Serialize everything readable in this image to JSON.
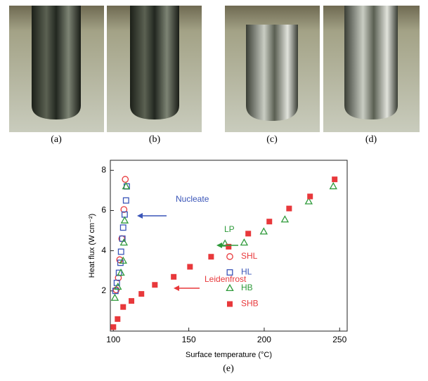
{
  "figure": {
    "panel_labels": [
      "(a)",
      "(b)",
      "(c)",
      "(d)",
      "(e)"
    ]
  },
  "chart_data": {
    "type": "scatter",
    "x_label": "Surface temperature (°C)",
    "y_label": "Heat flux (W cm⁻²)",
    "xlim": [
      98,
      255
    ],
    "ylim": [
      0,
      8.5
    ],
    "xticks": [
      100,
      150,
      200,
      250
    ],
    "yticks": [
      2,
      4,
      6,
      8
    ],
    "series": [
      {
        "name": "SHL",
        "color": "#e8383b",
        "marker": "circle-open",
        "x": [
          101.9,
          103.3,
          104.2,
          105.6,
          107,
          107.9
        ],
        "values": [
          2.05,
          2.65,
          3.55,
          4.6,
          6.05,
          7.55
        ]
      },
      {
        "name": "HL",
        "color": "#3a55b8",
        "marker": "square-open",
        "x": [
          101.4,
          102.3,
          103.7,
          104.7,
          105.1,
          106,
          106.5,
          107.5,
          108.4,
          108.9
        ],
        "values": [
          2.0,
          2.4,
          2.9,
          3.4,
          3.95,
          4.6,
          5.15,
          5.8,
          6.5,
          7.2
        ]
      },
      {
        "name": "HB",
        "color": "#2e9a3a",
        "marker": "triangle-open",
        "x": [
          101,
          103,
          105,
          106.5,
          107,
          107.5,
          108.4,
          174,
          186.7,
          199.7,
          213.7,
          229.5,
          245.8
        ],
        "values": [
          1.65,
          2.2,
          2.9,
          3.5,
          4.4,
          5.5,
          7.2,
          4.35,
          4.4,
          4.95,
          5.55,
          6.45,
          7.2
        ]
      },
      {
        "name": "SHB",
        "color": "#e8383b",
        "marker": "square-filled",
        "x": [
          100,
          102.8,
          106.5,
          112,
          118.6,
          127.5,
          140,
          150.8,
          164.8,
          176.4,
          189.4,
          203.4,
          216.5,
          230.4,
          246.7
        ],
        "values": [
          0.2,
          0.6,
          1.2,
          1.5,
          1.85,
          2.3,
          2.7,
          3.2,
          3.7,
          4.2,
          4.85,
          5.45,
          6.1,
          6.7,
          7.55
        ]
      }
    ],
    "annotations": [
      {
        "text": "Nucleate",
        "color": "#3a55b8"
      },
      {
        "text": "LP",
        "color": "#2e9a3a"
      },
      {
        "text": "Leidenfrost",
        "color": "#e8383b"
      }
    ]
  }
}
